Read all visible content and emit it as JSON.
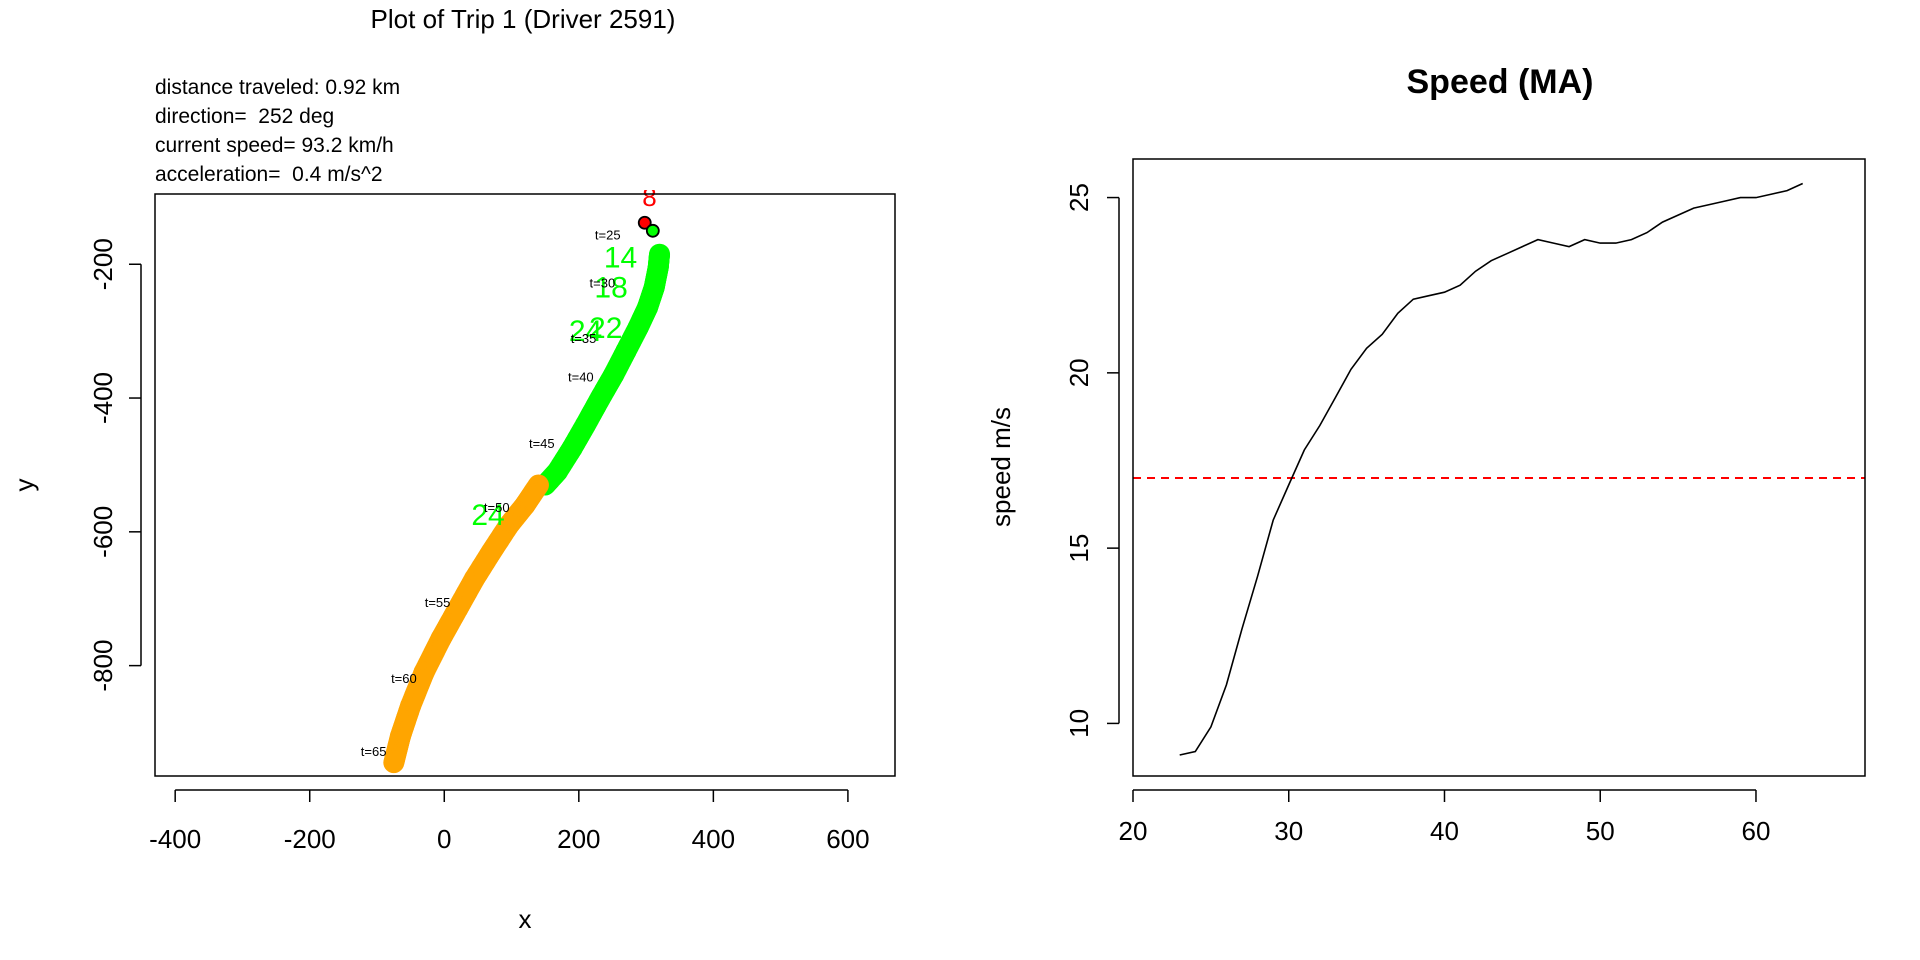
{
  "chart_data": [
    {
      "type": "scatter",
      "title": "Plot of Trip 1 (Driver 2591)",
      "xlabel": "x",
      "ylabel": "y",
      "xlim": [
        -430,
        670
      ],
      "ylim": [
        -965,
        -95
      ],
      "xticks": [
        -400,
        -200,
        0,
        200,
        400,
        600
      ],
      "yticks": [
        -200,
        -400,
        -600,
        -800
      ],
      "info_lines": [
        "distance traveled: 0.92 km",
        "direction=  252 deg",
        "current speed= 93.2 km/h",
        "acceleration=  0.4 m/s^2"
      ],
      "series": [
        {
          "name": "",
          "color": "#00ff00",
          "points": [
            [
              320,
              -185
            ],
            [
              318,
              -205
            ],
            [
              312,
              -235
            ],
            [
              302,
              -265
            ],
            [
              288,
              -295
            ],
            [
              270,
              -330
            ],
            [
              252,
              -365
            ],
            [
              232,
              -400
            ],
            [
              210,
              -440
            ],
            [
              190,
              -475
            ],
            [
              168,
              -510
            ],
            [
              150,
              -530
            ]
          ]
        },
        {
          "name": "",
          "color": "#ffa500",
          "points": [
            [
              140,
              -530
            ],
            [
              120,
              -560
            ],
            [
              96,
              -590
            ],
            [
              70,
              -630
            ],
            [
              45,
              -670
            ],
            [
              20,
              -715
            ],
            [
              -5,
              -760
            ],
            [
              -30,
              -810
            ],
            [
              -50,
              -860
            ],
            [
              -65,
              -905
            ],
            [
              -75,
              -945
            ]
          ]
        }
      ],
      "start_marker": {
        "x": 298,
        "y": -138,
        "color": "#ff0000"
      },
      "end_marker": {
        "x": 310,
        "y": -150,
        "color": "#00ff00"
      },
      "red_label": {
        "text": "8",
        "x": 305,
        "y": -95
      },
      "time_labels": [
        {
          "text": "t=25",
          "x": 243,
          "y": -163
        },
        {
          "text": "t=30",
          "x": 235,
          "y": -235
        },
        {
          "text": "t=35",
          "x": 207,
          "y": -318
        },
        {
          "text": "t=40",
          "x": 203,
          "y": -375
        },
        {
          "text": "t=45",
          "x": 145,
          "y": -475
        },
        {
          "text": "t=50",
          "x": 78,
          "y": -570
        },
        {
          "text": "t=55",
          "x": -10,
          "y": -712
        },
        {
          "text": "t=60",
          "x": -60,
          "y": -826
        },
        {
          "text": "t=65",
          "x": -105,
          "y": -935
        }
      ],
      "green_labels": [
        {
          "text": "14",
          "x": 262,
          "y": -205
        },
        {
          "text": "18",
          "x": 248,
          "y": -250
        },
        {
          "text": "24",
          "x": 210,
          "y": -315
        },
        {
          "text": "22",
          "x": 240,
          "y": -310
        },
        {
          "text": "24",
          "x": 65,
          "y": -590
        }
      ]
    },
    {
      "type": "line",
      "title": "Speed (MA)",
      "xlabel": "",
      "ylabel": "speed m/s",
      "xlim": [
        20,
        67
      ],
      "ylim": [
        8.5,
        26.1
      ],
      "xticks": [
        20,
        30,
        40,
        50,
        60
      ],
      "yticks": [
        10,
        15,
        20,
        25
      ],
      "threshold": {
        "value": 17,
        "color": "#ff0000",
        "style": "dashed"
      },
      "series": [
        {
          "name": "",
          "color": "#000000",
          "x": [
            23,
            24,
            25,
            26,
            27,
            28,
            29,
            30,
            31,
            32,
            33,
            34,
            35,
            36,
            37,
            38,
            39,
            40,
            41,
            42,
            43,
            44,
            45,
            46,
            47,
            48,
            49,
            50,
            51,
            52,
            53,
            54,
            55,
            56,
            57,
            58,
            59,
            60,
            61,
            62,
            63
          ],
          "y": [
            9.1,
            9.2,
            9.9,
            11.1,
            12.7,
            14.2,
            15.8,
            16.8,
            17.8,
            18.5,
            19.3,
            20.1,
            20.7,
            21.1,
            21.7,
            22.1,
            22.2,
            22.3,
            22.5,
            22.9,
            23.2,
            23.4,
            23.6,
            23.8,
            23.7,
            23.6,
            23.8,
            23.7,
            23.7,
            23.8,
            24.0,
            24.3,
            24.5,
            24.7,
            24.8,
            24.9,
            25.0,
            25.0,
            25.1,
            25.2,
            25.4
          ]
        }
      ]
    }
  ]
}
